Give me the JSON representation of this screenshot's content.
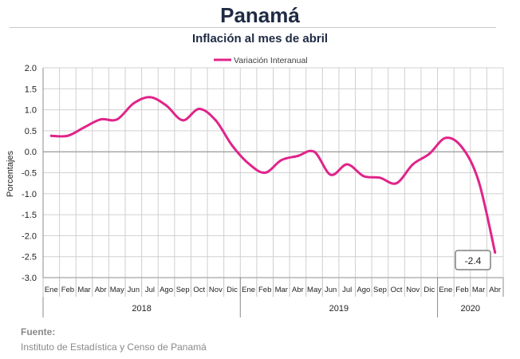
{
  "header": {
    "title": "Panamá",
    "subtitle": "Inflación al mes de abril"
  },
  "footer": {
    "source_label": "Fuente:",
    "source_text": "Instituto de Estadística y Censo de Panamá"
  },
  "chart_data": {
    "type": "line",
    "ylabel": "Porcentajes",
    "ylim": [
      -3.0,
      2.0
    ],
    "yticks": [
      "2.0",
      "1.5",
      "1.0",
      "0.5",
      "0.0",
      "-0.5",
      "-1.0",
      "-1.5",
      "-2.0",
      "-2.5",
      "-3.0"
    ],
    "grid": true,
    "legend": "top-center",
    "series_color": "#e0248a",
    "categories": [
      "Ene",
      "Feb",
      "Mar",
      "Abr",
      "May",
      "Jun",
      "Jul",
      "Ago",
      "Sep",
      "Oct",
      "Nov",
      "Dic",
      "Ene",
      "Feb",
      "Mar",
      "Abr",
      "May",
      "Jun",
      "Jul",
      "Ago",
      "Sep",
      "Oct",
      "Nov",
      "Dic",
      "Ene",
      "Feb",
      "Mar",
      "Abr"
    ],
    "years": [
      {
        "label": "2018",
        "months": 12
      },
      {
        "label": "2019",
        "months": 12
      },
      {
        "label": "2020",
        "months": 4
      }
    ],
    "series": [
      {
        "name": "Variación Interanual",
        "values": [
          0.38,
          0.38,
          0.58,
          0.77,
          0.77,
          1.15,
          1.3,
          1.1,
          0.75,
          1.02,
          0.75,
          0.15,
          -0.28,
          -0.5,
          -0.2,
          -0.1,
          0.0,
          -0.55,
          -0.3,
          -0.58,
          -0.62,
          -0.75,
          -0.3,
          -0.05,
          0.33,
          0.1,
          -0.7,
          -2.4
        ]
      }
    ],
    "annotations": [
      {
        "label": "-2.4",
        "index": 27
      }
    ]
  }
}
